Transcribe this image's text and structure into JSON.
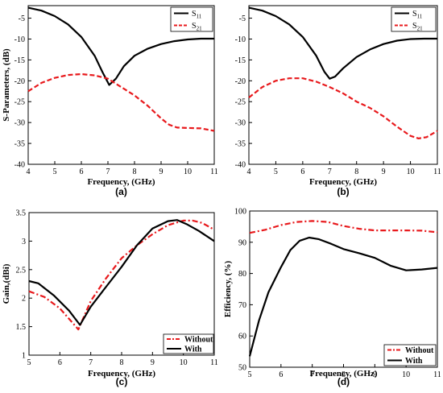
{
  "chart_data": [
    {
      "id": "a",
      "type": "line",
      "caption": "(a)",
      "xlabel": "Frequency, (GHz)",
      "ylabel": "S-Parameters, (dB)",
      "xlim": [
        4,
        11
      ],
      "ylim": [
        -40,
        -2
      ],
      "xticks": [
        4,
        5,
        6,
        7,
        8,
        9,
        10,
        11
      ],
      "yticks": [
        -5,
        -10,
        -15,
        -20,
        -25,
        -30,
        -35,
        -40
      ],
      "grid": false,
      "legend_position": "top-right",
      "legend_style": "sub",
      "series": [
        {
          "name": "S11",
          "base": "S",
          "sub": "11",
          "color": "#000000",
          "dash": "solid",
          "x": [
            4,
            4.5,
            5,
            5.5,
            6,
            6.5,
            6.8,
            7.05,
            7.3,
            7.6,
            8,
            8.5,
            9,
            9.5,
            10,
            10.5,
            11
          ],
          "y": [
            -2.5,
            -3.2,
            -4.5,
            -6.5,
            -9.5,
            -14,
            -18,
            -21,
            -19.5,
            -16.5,
            -14,
            -12.3,
            -11.2,
            -10.5,
            -10.1,
            -9.9,
            -9.9
          ]
        },
        {
          "name": "S21",
          "base": "S",
          "sub": "21",
          "color": "#e8191c",
          "dash": "dashed",
          "x": [
            4,
            4.5,
            5,
            5.5,
            6,
            6.5,
            7,
            7.5,
            8,
            8.5,
            9,
            9.3,
            9.6,
            10,
            10.5,
            11
          ],
          "y": [
            -22.5,
            -20.5,
            -19.3,
            -18.6,
            -18.4,
            -18.7,
            -19.5,
            -21.5,
            -23.5,
            -26,
            -29,
            -30.5,
            -31.2,
            -31.3,
            -31.4,
            -32
          ]
        }
      ]
    },
    {
      "id": "b",
      "type": "line",
      "caption": "(b)",
      "xlabel": "Frequency, (GHz)",
      "ylabel": "",
      "xlim": [
        4,
        11
      ],
      "ylim": [
        -40,
        -2
      ],
      "xticks": [
        4,
        5,
        6,
        7,
        8,
        9,
        10,
        11
      ],
      "yticks": [
        -5,
        -10,
        -15,
        -20,
        -25,
        -30,
        -35,
        -40
      ],
      "grid": false,
      "legend_position": "top-right",
      "legend_style": "sub",
      "series": [
        {
          "name": "S11",
          "base": "S",
          "sub": "11",
          "color": "#000000",
          "dash": "solid",
          "x": [
            4,
            4.5,
            5,
            5.5,
            6,
            6.5,
            6.8,
            7,
            7.2,
            7.5,
            8,
            8.5,
            9,
            9.5,
            10,
            10.5,
            11
          ],
          "y": [
            -2.5,
            -3.2,
            -4.5,
            -6.5,
            -9.5,
            -14,
            -17.8,
            -19.5,
            -19,
            -17,
            -14.3,
            -12.5,
            -11.2,
            -10.4,
            -10,
            -9.9,
            -9.9
          ]
        },
        {
          "name": "S21",
          "base": "S",
          "sub": "21",
          "color": "#e8191c",
          "dash": "dashed",
          "x": [
            4,
            4.5,
            5,
            5.5,
            6,
            6.5,
            7,
            7.5,
            8,
            8.5,
            9,
            9.5,
            10,
            10.3,
            10.6,
            11
          ],
          "y": [
            -24,
            -21.5,
            -20,
            -19.4,
            -19.4,
            -20.2,
            -21.5,
            -23,
            -25,
            -26.5,
            -28.5,
            -31,
            -33.2,
            -33.8,
            -33.5,
            -32
          ]
        }
      ]
    },
    {
      "id": "c",
      "type": "line",
      "caption": "(c)",
      "xlabel": "Frequency, (GHz)",
      "ylabel": "Gain,(dBi)",
      "xlim": [
        5,
        11
      ],
      "ylim": [
        1,
        3.5
      ],
      "xticks": [
        5,
        6,
        7,
        8,
        9,
        10,
        11
      ],
      "yticks": [
        1,
        1.5,
        2,
        2.5,
        3,
        3.5
      ],
      "grid": false,
      "legend_position": "bottom-right",
      "legend_style": "bold",
      "series": [
        {
          "name": "Without",
          "color": "#e8191c",
          "dash": "dashdot",
          "x": [
            5,
            5.5,
            6,
            6.6,
            7,
            7.5,
            8,
            8.5,
            9,
            9.5,
            10,
            10.3,
            10.6,
            11
          ],
          "y": [
            2.12,
            2.02,
            1.82,
            1.45,
            1.95,
            2.35,
            2.7,
            2.93,
            3.12,
            3.28,
            3.36,
            3.36,
            3.32,
            3.2
          ]
        },
        {
          "name": "With",
          "color": "#000000",
          "dash": "solid",
          "x": [
            5,
            5.3,
            5.8,
            6.3,
            6.65,
            7,
            7.5,
            8,
            8.5,
            9,
            9.5,
            9.8,
            10.1,
            10.5,
            11
          ],
          "y": [
            2.3,
            2.26,
            2.05,
            1.78,
            1.53,
            1.85,
            2.2,
            2.55,
            2.93,
            3.22,
            3.35,
            3.37,
            3.3,
            3.18,
            3
          ]
        }
      ]
    },
    {
      "id": "d",
      "type": "line",
      "caption": "(d)",
      "xlabel": "Frequency, (GHz)",
      "ylabel": "Efficiency, (%)",
      "xlim": [
        5,
        11
      ],
      "ylim": [
        50,
        100
      ],
      "xticks": [
        5,
        6,
        7,
        8,
        9,
        10,
        11
      ],
      "yticks": [
        50,
        60,
        70,
        80,
        90,
        100
      ],
      "grid": false,
      "legend_position": "bottom-right",
      "legend_style": "bold",
      "series": [
        {
          "name": "Without",
          "color": "#e8191c",
          "dash": "dashdot",
          "x": [
            5,
            5.5,
            6,
            6.5,
            7,
            7.5,
            8,
            8.5,
            9,
            9.5,
            10,
            10.5,
            11
          ],
          "y": [
            93,
            94,
            95.5,
            96.5,
            96.8,
            96.5,
            95.2,
            94.3,
            93.8,
            93.8,
            93.8,
            93.7,
            93.2
          ]
        },
        {
          "name": "With",
          "color": "#000000",
          "dash": "solid",
          "x": [
            5,
            5.3,
            5.6,
            6,
            6.3,
            6.6,
            6.9,
            7.2,
            7.6,
            8,
            8.5,
            9,
            9.5,
            10,
            10.5,
            11
          ],
          "y": [
            53.5,
            65,
            74,
            82,
            87.5,
            90.5,
            91.5,
            91,
            89.5,
            87.8,
            86.5,
            85,
            82.5,
            81,
            81.3,
            81.8
          ]
        }
      ]
    }
  ]
}
